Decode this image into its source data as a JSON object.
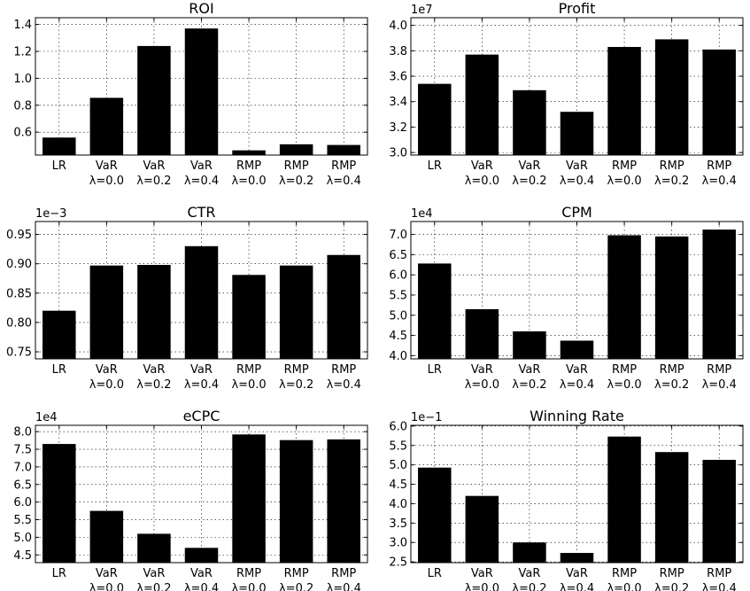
{
  "chart_data": [
    {
      "type": "bar",
      "title": "ROI",
      "scale_label": "",
      "categories": [
        [
          "LR",
          ""
        ],
        [
          "VaR",
          "λ=0.0"
        ],
        [
          "VaR",
          "λ=0.2"
        ],
        [
          "VaR",
          "λ=0.4"
        ],
        [
          "RMP",
          "λ=0.0"
        ],
        [
          "RMP",
          "λ=0.2"
        ],
        [
          "RMP",
          "λ=0.4"
        ]
      ],
      "values": [
        0.56,
        0.855,
        1.24,
        1.37,
        0.465,
        0.51,
        0.505
      ],
      "ylim": [
        0.43,
        1.45
      ],
      "yticks": [
        0.6,
        0.8,
        1.0,
        1.2,
        1.4
      ],
      "ytick_labels": [
        "0.6",
        "0.8",
        "1.0",
        "1.2",
        "1.4"
      ],
      "grid": true
    },
    {
      "type": "bar",
      "title": "Profit",
      "scale_label": "1e7",
      "categories": [
        [
          "LR",
          ""
        ],
        [
          "VaR",
          "λ=0.0"
        ],
        [
          "VaR",
          "λ=0.2"
        ],
        [
          "VaR",
          "λ=0.4"
        ],
        [
          "RMP",
          "λ=0.0"
        ],
        [
          "RMP",
          "λ=0.2"
        ],
        [
          "RMP",
          "λ=0.4"
        ]
      ],
      "values": [
        3.54,
        3.77,
        3.49,
        3.32,
        3.83,
        3.89,
        3.81
      ],
      "ylim": [
        2.98,
        4.06
      ],
      "yticks": [
        3.0,
        3.2,
        3.4,
        3.6,
        3.8,
        4.0
      ],
      "ytick_labels": [
        "3.0",
        "3.2",
        "3.4",
        "3.6",
        "3.8",
        "4.0"
      ],
      "grid": true
    },
    {
      "type": "bar",
      "title": "CTR",
      "scale_label": "1e−3",
      "categories": [
        [
          "LR",
          ""
        ],
        [
          "VaR",
          "λ=0.0"
        ],
        [
          "VaR",
          "λ=0.2"
        ],
        [
          "VaR",
          "λ=0.4"
        ],
        [
          "RMP",
          "λ=0.0"
        ],
        [
          "RMP",
          "λ=0.2"
        ],
        [
          "RMP",
          "λ=0.4"
        ]
      ],
      "values": [
        0.82,
        0.897,
        0.898,
        0.93,
        0.881,
        0.897,
        0.915
      ],
      "ylim": [
        0.738,
        0.972
      ],
      "yticks": [
        0.75,
        0.8,
        0.85,
        0.9,
        0.95
      ],
      "ytick_labels": [
        "0.75",
        "0.80",
        "0.85",
        "0.90",
        "0.95"
      ],
      "grid": true
    },
    {
      "type": "bar",
      "title": "CPM",
      "scale_label": "1e4",
      "categories": [
        [
          "LR",
          ""
        ],
        [
          "VaR",
          "λ=0.0"
        ],
        [
          "VaR",
          "λ=0.2"
        ],
        [
          "VaR",
          "λ=0.4"
        ],
        [
          "RMP",
          "λ=0.0"
        ],
        [
          "RMP",
          "λ=0.2"
        ],
        [
          "RMP",
          "λ=0.4"
        ]
      ],
      "values": [
        6.28,
        5.15,
        4.6,
        4.37,
        6.98,
        6.95,
        7.12
      ],
      "ylim": [
        3.92,
        7.32
      ],
      "yticks": [
        4.0,
        4.5,
        5.0,
        5.5,
        6.0,
        6.5,
        7.0
      ],
      "ytick_labels": [
        "4.0",
        "4.5",
        "5.0",
        "5.5",
        "6.0",
        "6.5",
        "7.0"
      ],
      "grid": true
    },
    {
      "type": "bar",
      "title": "eCPC",
      "scale_label": "1e4",
      "categories": [
        [
          "LR",
          ""
        ],
        [
          "VaR",
          "λ=0.0"
        ],
        [
          "VaR",
          "λ=0.2"
        ],
        [
          "VaR",
          "λ=0.4"
        ],
        [
          "RMP",
          "λ=0.0"
        ],
        [
          "RMP",
          "λ=0.2"
        ],
        [
          "RMP",
          "λ=0.4"
        ]
      ],
      "values": [
        7.65,
        5.75,
        5.1,
        4.7,
        7.92,
        7.76,
        7.78
      ],
      "ylim": [
        4.28,
        8.18
      ],
      "yticks": [
        4.5,
        5.0,
        5.5,
        6.0,
        6.5,
        7.0,
        7.5,
        8.0
      ],
      "ytick_labels": [
        "4.5",
        "5.0",
        "5.5",
        "6.0",
        "6.5",
        "7.0",
        "7.5",
        "8.0"
      ],
      "grid": true
    },
    {
      "type": "bar",
      "title": "Winning Rate",
      "scale_label": "1e−1",
      "categories": [
        [
          "LR",
          ""
        ],
        [
          "VaR",
          "λ=0.0"
        ],
        [
          "VaR",
          "λ=0.2"
        ],
        [
          "VaR",
          "λ=0.4"
        ],
        [
          "RMP",
          "λ=0.0"
        ],
        [
          "RMP",
          "λ=0.2"
        ],
        [
          "RMP",
          "λ=0.4"
        ]
      ],
      "values": [
        4.93,
        4.2,
        3.0,
        2.73,
        5.73,
        5.33,
        5.13
      ],
      "ylim": [
        2.48,
        6.02
      ],
      "yticks": [
        2.5,
        3.0,
        3.5,
        4.0,
        4.5,
        5.0,
        5.5,
        6.0
      ],
      "ytick_labels": [
        "2.5",
        "3.0",
        "3.5",
        "4.0",
        "4.5",
        "5.0",
        "5.5",
        "6.0"
      ],
      "grid": true
    }
  ]
}
